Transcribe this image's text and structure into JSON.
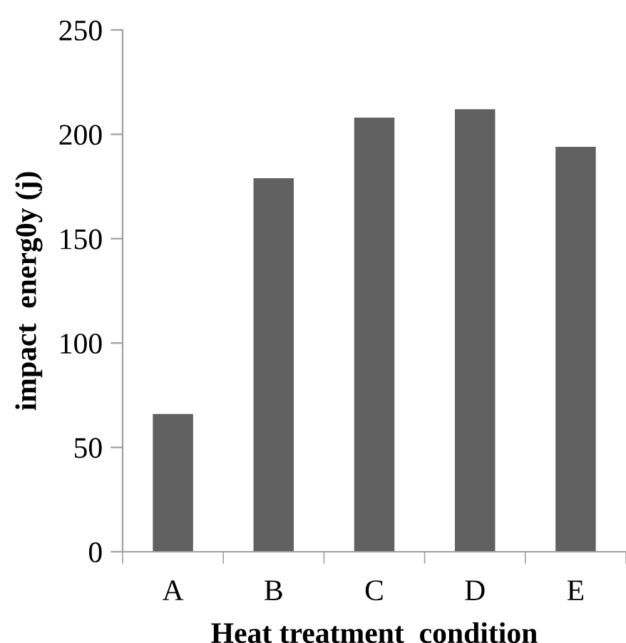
{
  "chart_data": {
    "type": "bar",
    "xlabel": "Heat treatment  condition",
    "ylabel": "impact  energ0y (j)",
    "categories": [
      "A",
      "B",
      "C",
      "D",
      "E"
    ],
    "values": [
      66,
      179,
      208,
      212,
      194
    ],
    "color": "#606060",
    "ylim": [
      0,
      250
    ],
    "yticks": [
      0,
      50,
      100,
      150,
      200,
      250
    ],
    "grid": false
  }
}
